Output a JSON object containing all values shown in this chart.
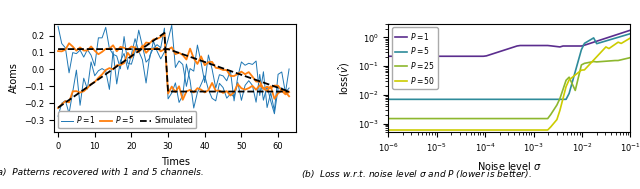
{
  "left_plot": {
    "xlabel": "Times",
    "ylabel": "Atoms",
    "xlim": [
      -1,
      65
    ],
    "ylim": [
      -0.37,
      0.27
    ],
    "yticks": [
      -0.3,
      -0.2,
      -0.1,
      0.0,
      0.1,
      0.2
    ],
    "xticks": [
      0,
      10,
      20,
      30,
      40,
      50,
      60
    ],
    "caption": "(a)  Patterns recovered with 1 and 5 channels.",
    "p1_color": "#1f77b4",
    "p5_color": "#ff7f0e",
    "sim_color": "black",
    "noise_p1": 0.075,
    "noise_p5": 0.018,
    "n": 64,
    "seed": 3,
    "sim1_flat": 0.12,
    "sim1_end": -0.13,
    "sim2_start": -0.225,
    "sim2_peak": 0.215,
    "sim2_flat": -0.13,
    "split": 30
  },
  "right_plot": {
    "xlabel": "Noise level $\\sigma$",
    "ylabel": "loss($\\hat{v}$)",
    "caption": "(b)  Loss w.r.t. noise level $\\sigma$ and $P$ (lower is better).",
    "colors": [
      "#5b2d8e",
      "#2e8b9a",
      "#8db72e",
      "#cccc00"
    ],
    "labels": [
      "$P=1$",
      "$P=5$",
      "$P=25$",
      "$P=50$"
    ],
    "xlim": [
      1e-06,
      0.1
    ],
    "ylim": [
      0.0005,
      3.0
    ],
    "p1_flat_low": 0.22,
    "p1_flat_high": 0.52,
    "p5_flat": 0.007,
    "p25_flat": 0.0015,
    "p50_flat": 0.0006
  }
}
